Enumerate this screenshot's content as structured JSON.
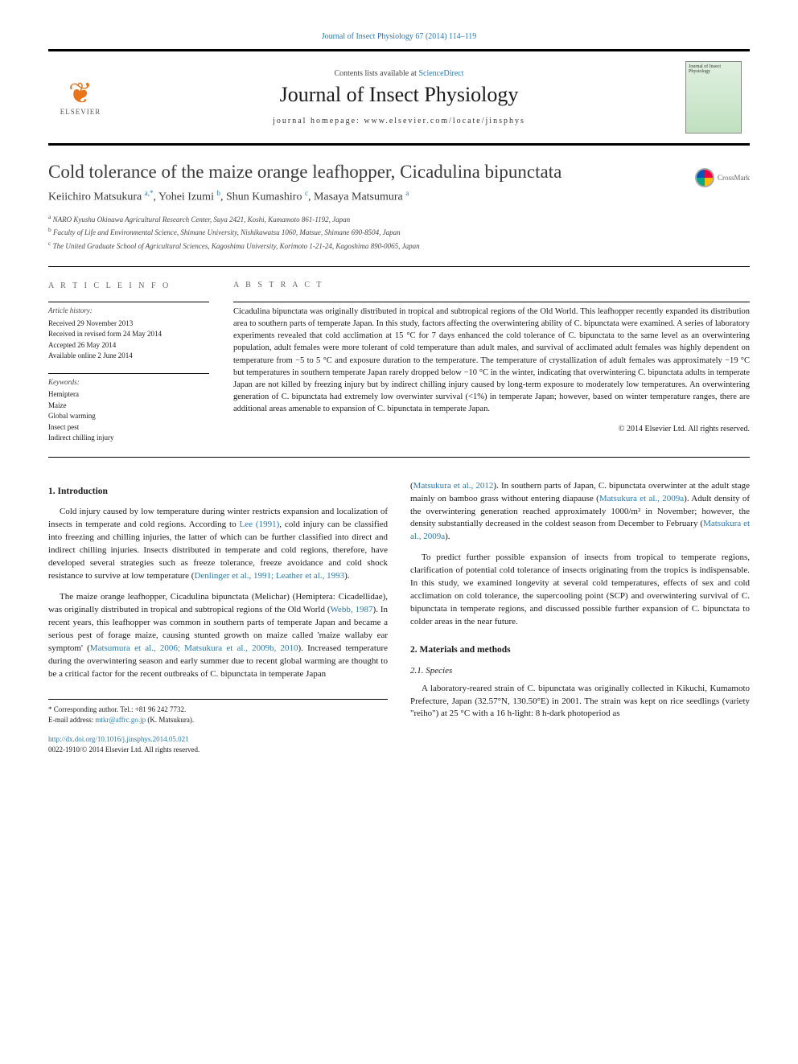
{
  "topLink": "Journal of Insect Physiology 67 (2014) 114–119",
  "headerBand": {
    "contentsLine": "Contents lists available at ",
    "scienceDirect": "ScienceDirect",
    "journalName": "Journal of Insect Physiology",
    "homepage": "journal homepage: www.elsevier.com/locate/jinsphys",
    "publisherLogo": "ELSEVIER",
    "coverLabel": "Journal of Insect Physiology"
  },
  "crossmark": "CrossMark",
  "title": "Cold tolerance of the maize orange leafhopper, Cicadulina bipunctata",
  "authors": [
    {
      "name": "Keiichiro Matsukura",
      "affil": "a,*"
    },
    {
      "name": "Yohei Izumi",
      "affil": "b"
    },
    {
      "name": "Shun Kumashiro",
      "affil": "c"
    },
    {
      "name": "Masaya Matsumura",
      "affil": "a"
    }
  ],
  "affiliations": [
    {
      "sup": "a",
      "text": "NARO Kyushu Okinawa Agricultural Research Center, Suya 2421, Koshi, Kumamoto 861-1192, Japan"
    },
    {
      "sup": "b",
      "text": "Faculty of Life and Environmental Science, Shimane University, Nishikawatsu 1060, Matsue, Shimane 690-8504, Japan"
    },
    {
      "sup": "c",
      "text": "The United Graduate School of Agricultural Sciences, Kagoshima University, Korimoto 1-21-24, Kagoshima 890-0065, Japan"
    }
  ],
  "articleInfo": {
    "head": "A R T I C L E   I N F O",
    "historyHead": "Article history:",
    "history": [
      "Received 29 November 2013",
      "Received in revised form 24 May 2014",
      "Accepted 26 May 2014",
      "Available online 2 June 2014"
    ],
    "keywordsHead": "Keywords:",
    "keywords": [
      "Hemiptera",
      "Maize",
      "Global warming",
      "Insect pest",
      "Indirect chilling injury"
    ]
  },
  "abstract": {
    "head": "A B S T R A C T",
    "body": "Cicadulina bipunctata was originally distributed in tropical and subtropical regions of the Old World. This leafhopper recently expanded its distribution area to southern parts of temperate Japan. In this study, factors affecting the overwintering ability of C. bipunctata were examined. A series of laboratory experiments revealed that cold acclimation at 15 °C for 7 days enhanced the cold tolerance of C. bipunctata to the same level as an overwintering population, adult females were more tolerant of cold temperature than adult males, and survival of acclimated adult females was highly dependent on temperature from −5 to 5 °C and exposure duration to the temperature. The temperature of crystallization of adult females was approximately −19 °C but temperatures in southern temperate Japan rarely dropped below −10 °C in the winter, indicating that overwintering C. bipunctata adults in temperate Japan are not killed by freezing injury but by indirect chilling injury caused by long-term exposure to moderately low temperatures. An overwintering generation of C. bipunctata had extremely low overwinter survival (<1%) in temperate Japan; however, based on winter temperature ranges, there are additional areas amenable to expansion of C. bipunctata in temperate Japan.",
    "copyright": "© 2014 Elsevier Ltd. All rights reserved."
  },
  "body": {
    "leftCol": {
      "sec1Head": "1. Introduction",
      "p1a": "Cold injury caused by low temperature during winter restricts expansion and localization of insects in temperate and cold regions. According to ",
      "p1cite1": "Lee (1991)",
      "p1b": ", cold injury can be classified into freezing and chilling injuries, the latter of which can be further classified into direct and indirect chilling injuries. Insects distributed in temperate and cold regions, therefore, have developed several strategies such as freeze tolerance, freeze avoidance and cold shock resistance to survive at low temperature (",
      "p1cite2": "Denlinger et al., 1991; Leather et al., 1993",
      "p1c": ").",
      "p2a": "The maize orange leafhopper, Cicadulina bipunctata (Melichar) (Hemiptera: Cicadellidae), was originally distributed in tropical and subtropical regions of the Old World (",
      "p2cite1": "Webb, 1987",
      "p2b": "). In recent years, this leafhopper was common in southern parts of temperate Japan and became a serious pest of forage maize, causing stunted growth on maize called 'maize wallaby ear symptom' (",
      "p2cite2": "Matsumura et al., 2006; Matsukura et al., 2009b, 2010",
      "p2c": "). Increased temperature during the overwintering season and early summer due to recent global warming are thought to be a critical factor for the recent outbreaks of C. bipunctata in temperate Japan"
    },
    "rightCol": {
      "p3a": "(",
      "p3cite1": "Matsukura et al., 2012",
      "p3b": "). In southern parts of Japan, C. bipunctata overwinter at the adult stage mainly on bamboo grass without entering diapause (",
      "p3cite2": "Matsukura et al., 2009a",
      "p3c": "). Adult density of the overwintering generation reached approximately 1000/m² in November; however, the density substantially decreased in the coldest season from December to February (",
      "p3cite3": "Matsukura et al., 2009a",
      "p3d": ").",
      "p4": "To predict further possible expansion of insects from tropical to temperate regions, clarification of potential cold tolerance of insects originating from the tropics is indispensable. In this study, we examined longevity at several cold temperatures, effects of sex and cold acclimation on cold tolerance, the supercooling point (SCP) and overwintering survival of C. bipunctata in temperate regions, and discussed possible further expansion of C. bipunctata to colder areas in the near future.",
      "sec2Head": "2. Materials and methods",
      "sub21Head": "2.1. Species",
      "p5": "A laboratory-reared strain of C. bipunctata was originally collected in Kikuchi, Kumamoto Prefecture, Japan (32.57°N, 130.50°E) in 2001. The strain was kept on rice seedlings (variety \"reiho\") at 25 °C with a 16 h-light: 8 h-dark photoperiod as"
    }
  },
  "footer": {
    "corrLine": "* Corresponding author. Tel.: +81 96 242 7732.",
    "emailLabel": "E-mail address: ",
    "email": "mtkr@affrc.go.jp",
    "emailSuffix": " (K. Matsukura).",
    "doi": "http://dx.doi.org/10.1016/j.jinsphys.2014.05.021",
    "issn": "0022-1910/© 2014 Elsevier Ltd. All rights reserved."
  },
  "colors": {
    "link": "#2a7ab0",
    "text": "#1a1a1a",
    "orange": "#e8751a"
  }
}
